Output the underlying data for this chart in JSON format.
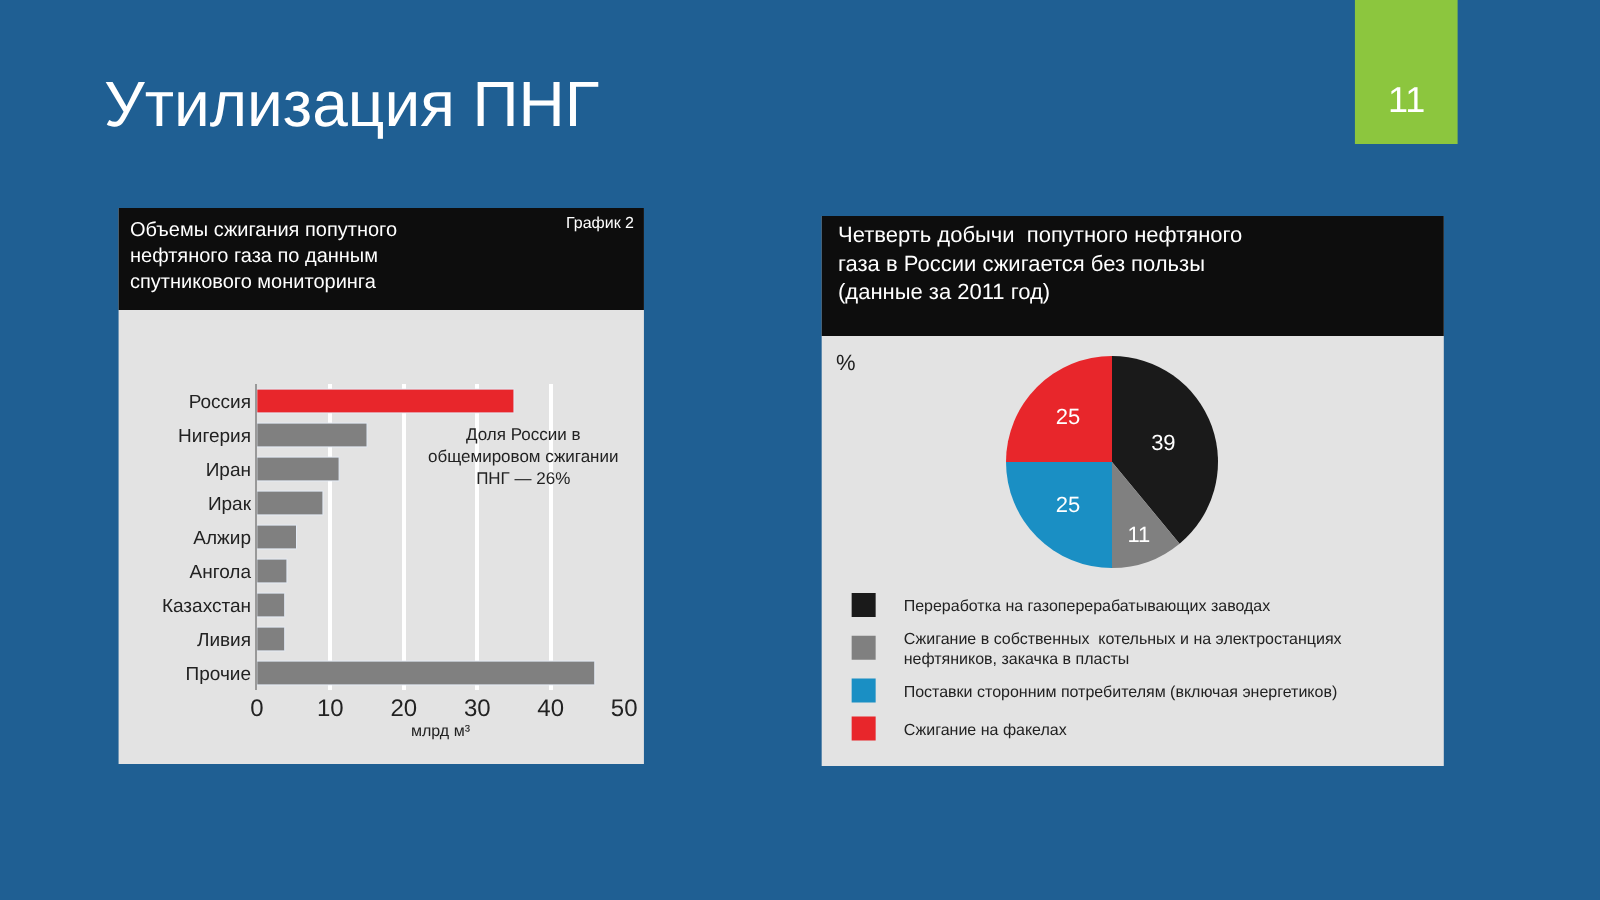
{
  "chart_data": [
    {
      "type": "bar",
      "orientation": "horizontal",
      "title": "Объемы сжигания попутного нефтяного газа по данным спутникового мониторинга",
      "xlabel": "млрд м³",
      "categories": [
        "Россия",
        "Нигерия",
        "Иран",
        "Ирак",
        "Алжир",
        "Ангола",
        "Казахстан",
        "Ливия",
        "Прочие"
      ],
      "values": [
        35,
        15,
        11.2,
        9,
        5.4,
        4.1,
        3.8,
        3.8,
        46
      ],
      "colors": [
        "#e8262b",
        "#808080",
        "#808080",
        "#808080",
        "#808080",
        "#808080",
        "#808080",
        "#808080",
        "#808080"
      ],
      "xlim": [
        0,
        50
      ],
      "xticks": [
        0,
        10,
        20,
        30,
        40,
        50
      ],
      "grid": "x",
      "annotations": [
        "Утилизация ПНГ",
        "11",
        "График 2",
        "Доля России в общемировом сжигании ПНГ — 26%"
      ]
    },
    {
      "type": "pie",
      "title": "Четверть добычи  попутного нефтяного газа в России сжигается без пользы (данные за 2011 год)",
      "categories": [
        "Переработка на газоперерабатывающих заводах",
        "Сжигание в собственных  котельных и на электростанциях нефтяников, закачка в пласты",
        "Поставки сторонним потребителям (включая энергетиков)",
        "Сжигание на факелах"
      ],
      "values": [
        39,
        11,
        25,
        25
      ],
      "colors": [
        "#1a1a1a",
        "#808080",
        "#1a8fc4",
        "#e8262b"
      ],
      "data_labels": true,
      "legend": "bottom",
      "annotations": [
        "%"
      ]
    }
  ]
}
